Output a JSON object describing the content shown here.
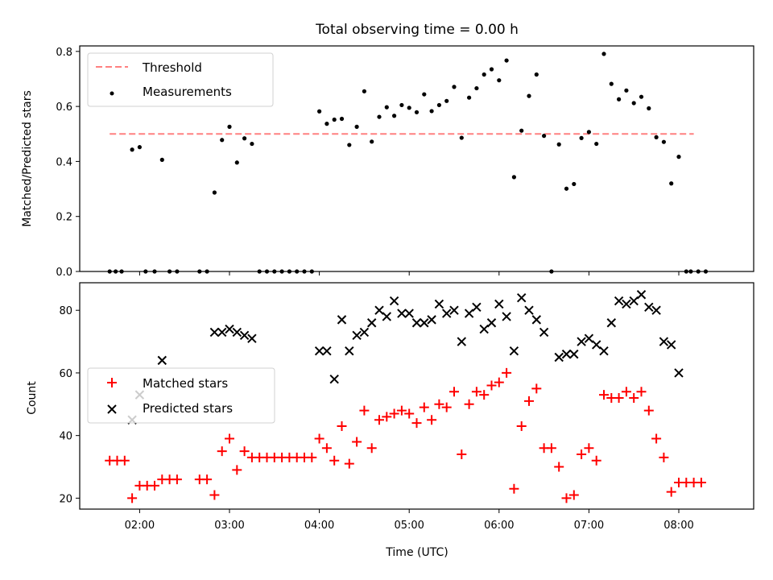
{
  "chart_data": [
    {
      "type": "scatter",
      "title": "Total observing time = 0.00 h",
      "xlabel": "",
      "ylabel": "Matched/Predicted stars",
      "xlim": [
        "01:20",
        "08:50"
      ],
      "ylim": [
        0,
        0.82
      ],
      "yticks": [
        0.0,
        0.2,
        0.4,
        0.6,
        0.8
      ],
      "ytick_labels": [
        "0.0",
        "0.2",
        "0.4",
        "0.6",
        "0.8"
      ],
      "grid": false,
      "legend_position": "upper-left",
      "threshold": {
        "name": "Threshold",
        "value": 0.5,
        "x_range": [
          "01:40",
          "08:10"
        ],
        "color": "#ff8080",
        "style": "dashed"
      },
      "series": [
        {
          "name": "Measurements",
          "color": "#000000",
          "marker": "dot",
          "points": [
            [
              "01:40",
              0
            ],
            [
              "01:44",
              0
            ],
            [
              "01:48",
              0
            ],
            [
              "01:55",
              0.443
            ],
            [
              "02:00",
              0.452
            ],
            [
              "02:04",
              0
            ],
            [
              "02:10",
              0
            ],
            [
              "02:15",
              0.406
            ],
            [
              "02:20",
              0
            ],
            [
              "02:25",
              0
            ],
            [
              "02:40",
              0
            ],
            [
              "02:45",
              0
            ],
            [
              "02:50",
              0.287
            ],
            [
              "02:55",
              0.478
            ],
            [
              "03:00",
              0.526
            ],
            [
              "03:05",
              0.396
            ],
            [
              "03:10",
              0.484
            ],
            [
              "03:15",
              0.464
            ],
            [
              "03:20",
              0
            ],
            [
              "03:25",
              0
            ],
            [
              "03:30",
              0
            ],
            [
              "03:35",
              0
            ],
            [
              "03:40",
              0
            ],
            [
              "03:45",
              0
            ],
            [
              "03:50",
              0
            ],
            [
              "03:55",
              0
            ],
            [
              "04:00",
              0.582
            ],
            [
              "04:05",
              0.537
            ],
            [
              "04:10",
              0.552
            ],
            [
              "04:15",
              0.555
            ],
            [
              "04:20",
              0.46
            ],
            [
              "04:25",
              0.526
            ],
            [
              "04:30",
              0.655
            ],
            [
              "04:35",
              0.472
            ],
            [
              "04:40",
              0.562
            ],
            [
              "04:45",
              0.597
            ],
            [
              "04:50",
              0.566
            ],
            [
              "04:55",
              0.605
            ],
            [
              "05:00",
              0.595
            ],
            [
              "05:05",
              0.579
            ],
            [
              "05:10",
              0.644
            ],
            [
              "05:15",
              0.583
            ],
            [
              "05:20",
              0.605
            ],
            [
              "05:25",
              0.62
            ],
            [
              "05:30",
              0.671
            ],
            [
              "05:35",
              0.486
            ],
            [
              "05:40",
              0.632
            ],
            [
              "05:45",
              0.666
            ],
            [
              "05:50",
              0.716
            ],
            [
              "05:55",
              0.735
            ],
            [
              "06:00",
              0.695
            ],
            [
              "06:05",
              0.767
            ],
            [
              "06:10",
              0.343
            ],
            [
              "06:15",
              0.512
            ],
            [
              "06:20",
              0.638
            ],
            [
              "06:25",
              0.716
            ],
            [
              "06:30",
              0.493
            ],
            [
              "06:35",
              0
            ],
            [
              "06:40",
              0.462
            ],
            [
              "06:45",
              0.301
            ],
            [
              "06:50",
              0.318
            ],
            [
              "06:55",
              0.485
            ],
            [
              "07:00",
              0.507
            ],
            [
              "07:05",
              0.464
            ],
            [
              "07:10",
              0.791
            ],
            [
              "07:15",
              0.682
            ],
            [
              "07:20",
              0.626
            ],
            [
              "07:25",
              0.658
            ],
            [
              "07:30",
              0.612
            ],
            [
              "07:35",
              0.635
            ],
            [
              "07:40",
              0.593
            ],
            [
              "07:45",
              0.488
            ],
            [
              "07:50",
              0.471
            ],
            [
              "07:55",
              0.32
            ],
            [
              "08:00",
              0.417
            ],
            [
              "08:05",
              0
            ],
            [
              "08:08",
              0
            ],
            [
              "08:13",
              0
            ],
            [
              "08:18",
              0
            ]
          ]
        }
      ]
    },
    {
      "type": "scatter",
      "title": "",
      "xlabel": "Time (UTC)",
      "ylabel": "Count",
      "xlim": [
        "01:20",
        "08:50"
      ],
      "ylim": [
        16.5,
        88.8
      ],
      "xticks": [
        "02:00",
        "03:00",
        "04:00",
        "05:00",
        "06:00",
        "07:00",
        "08:00"
      ],
      "yticks": [
        20,
        40,
        60,
        80
      ],
      "ytick_labels": [
        "20",
        "40",
        "60",
        "80"
      ],
      "grid": false,
      "legend_position": "center-left",
      "series": [
        {
          "name": "Matched stars",
          "color": "#ff0000",
          "marker": "plus",
          "points": [
            [
              "01:40",
              32
            ],
            [
              "01:45",
              32
            ],
            [
              "01:50",
              32
            ],
            [
              "01:55",
              20
            ],
            [
              "02:00",
              24
            ],
            [
              "02:05",
              24
            ],
            [
              "02:10",
              24
            ],
            [
              "02:15",
              26
            ],
            [
              "02:20",
              26
            ],
            [
              "02:25",
              26
            ],
            [
              "02:40",
              26
            ],
            [
              "02:45",
              26
            ],
            [
              "02:50",
              21
            ],
            [
              "02:55",
              35
            ],
            [
              "03:00",
              39
            ],
            [
              "03:05",
              29
            ],
            [
              "03:10",
              35
            ],
            [
              "03:15",
              33
            ],
            [
              "03:20",
              33
            ],
            [
              "03:25",
              33
            ],
            [
              "03:30",
              33
            ],
            [
              "03:35",
              33
            ],
            [
              "03:40",
              33
            ],
            [
              "03:45",
              33
            ],
            [
              "03:50",
              33
            ],
            [
              "03:55",
              33
            ],
            [
              "04:00",
              39
            ],
            [
              "04:05",
              36
            ],
            [
              "04:10",
              32
            ],
            [
              "04:15",
              43
            ],
            [
              "04:20",
              31
            ],
            [
              "04:25",
              38
            ],
            [
              "04:30",
              48
            ],
            [
              "04:35",
              36
            ],
            [
              "04:40",
              45
            ],
            [
              "04:45",
              46
            ],
            [
              "04:50",
              47
            ],
            [
              "04:55",
              48
            ],
            [
              "05:00",
              47
            ],
            [
              "05:05",
              44
            ],
            [
              "05:10",
              49
            ],
            [
              "05:15",
              45
            ],
            [
              "05:20",
              50
            ],
            [
              "05:25",
              49
            ],
            [
              "05:30",
              54
            ],
            [
              "05:35",
              34
            ],
            [
              "05:40",
              50
            ],
            [
              "05:45",
              54
            ],
            [
              "05:50",
              53
            ],
            [
              "05:55",
              56
            ],
            [
              "06:00",
              57
            ],
            [
              "06:05",
              60
            ],
            [
              "06:10",
              23
            ],
            [
              "06:15",
              43
            ],
            [
              "06:20",
              51
            ],
            [
              "06:25",
              55
            ],
            [
              "06:30",
              36
            ],
            [
              "06:35",
              36
            ],
            [
              "06:40",
              30
            ],
            [
              "06:45",
              20
            ],
            [
              "06:50",
              21
            ],
            [
              "06:55",
              34
            ],
            [
              "07:00",
              36
            ],
            [
              "07:05",
              32
            ],
            [
              "07:10",
              53
            ],
            [
              "07:15",
              52
            ],
            [
              "07:20",
              52
            ],
            [
              "07:25",
              54
            ],
            [
              "07:30",
              52
            ],
            [
              "07:35",
              54
            ],
            [
              "07:40",
              48
            ],
            [
              "07:45",
              39
            ],
            [
              "07:50",
              33
            ],
            [
              "07:55",
              22
            ],
            [
              "08:00",
              25
            ],
            [
              "08:05",
              25
            ],
            [
              "08:10",
              25
            ],
            [
              "08:15",
              25
            ]
          ]
        },
        {
          "name": "Predicted stars",
          "color": "#000000",
          "marker": "cross",
          "points": [
            [
              "01:55",
              45
            ],
            [
              "02:00",
              53
            ],
            [
              "02:15",
              64
            ],
            [
              "02:50",
              73
            ],
            [
              "02:55",
              73
            ],
            [
              "03:00",
              74
            ],
            [
              "03:05",
              73
            ],
            [
              "03:10",
              72
            ],
            [
              "03:15",
              71
            ],
            [
              "04:00",
              67
            ],
            [
              "04:05",
              67
            ],
            [
              "04:10",
              58
            ],
            [
              "04:15",
              77
            ],
            [
              "04:20",
              67
            ],
            [
              "04:25",
              72
            ],
            [
              "04:30",
              73
            ],
            [
              "04:35",
              76
            ],
            [
              "04:40",
              80
            ],
            [
              "04:45",
              78
            ],
            [
              "04:50",
              83
            ],
            [
              "04:55",
              79
            ],
            [
              "05:00",
              79
            ],
            [
              "05:05",
              76
            ],
            [
              "05:10",
              76
            ],
            [
              "05:15",
              77
            ],
            [
              "05:20",
              82
            ],
            [
              "05:25",
              79
            ],
            [
              "05:30",
              80
            ],
            [
              "05:35",
              70
            ],
            [
              "05:40",
              79
            ],
            [
              "05:45",
              81
            ],
            [
              "05:50",
              74
            ],
            [
              "05:55",
              76
            ],
            [
              "06:00",
              82
            ],
            [
              "06:05",
              78
            ],
            [
              "06:10",
              67
            ],
            [
              "06:15",
              84
            ],
            [
              "06:20",
              80
            ],
            [
              "06:25",
              77
            ],
            [
              "06:30",
              73
            ],
            [
              "06:40",
              65
            ],
            [
              "06:45",
              66
            ],
            [
              "06:50",
              66
            ],
            [
              "06:55",
              70
            ],
            [
              "07:00",
              71
            ],
            [
              "07:05",
              69
            ],
            [
              "07:10",
              67
            ],
            [
              "07:15",
              76
            ],
            [
              "07:20",
              83
            ],
            [
              "07:25",
              82
            ],
            [
              "07:30",
              83
            ],
            [
              "07:35",
              85
            ],
            [
              "07:40",
              81
            ],
            [
              "07:45",
              80
            ],
            [
              "07:50",
              70
            ],
            [
              "07:55",
              69
            ],
            [
              "08:00",
              60
            ]
          ]
        }
      ]
    }
  ]
}
